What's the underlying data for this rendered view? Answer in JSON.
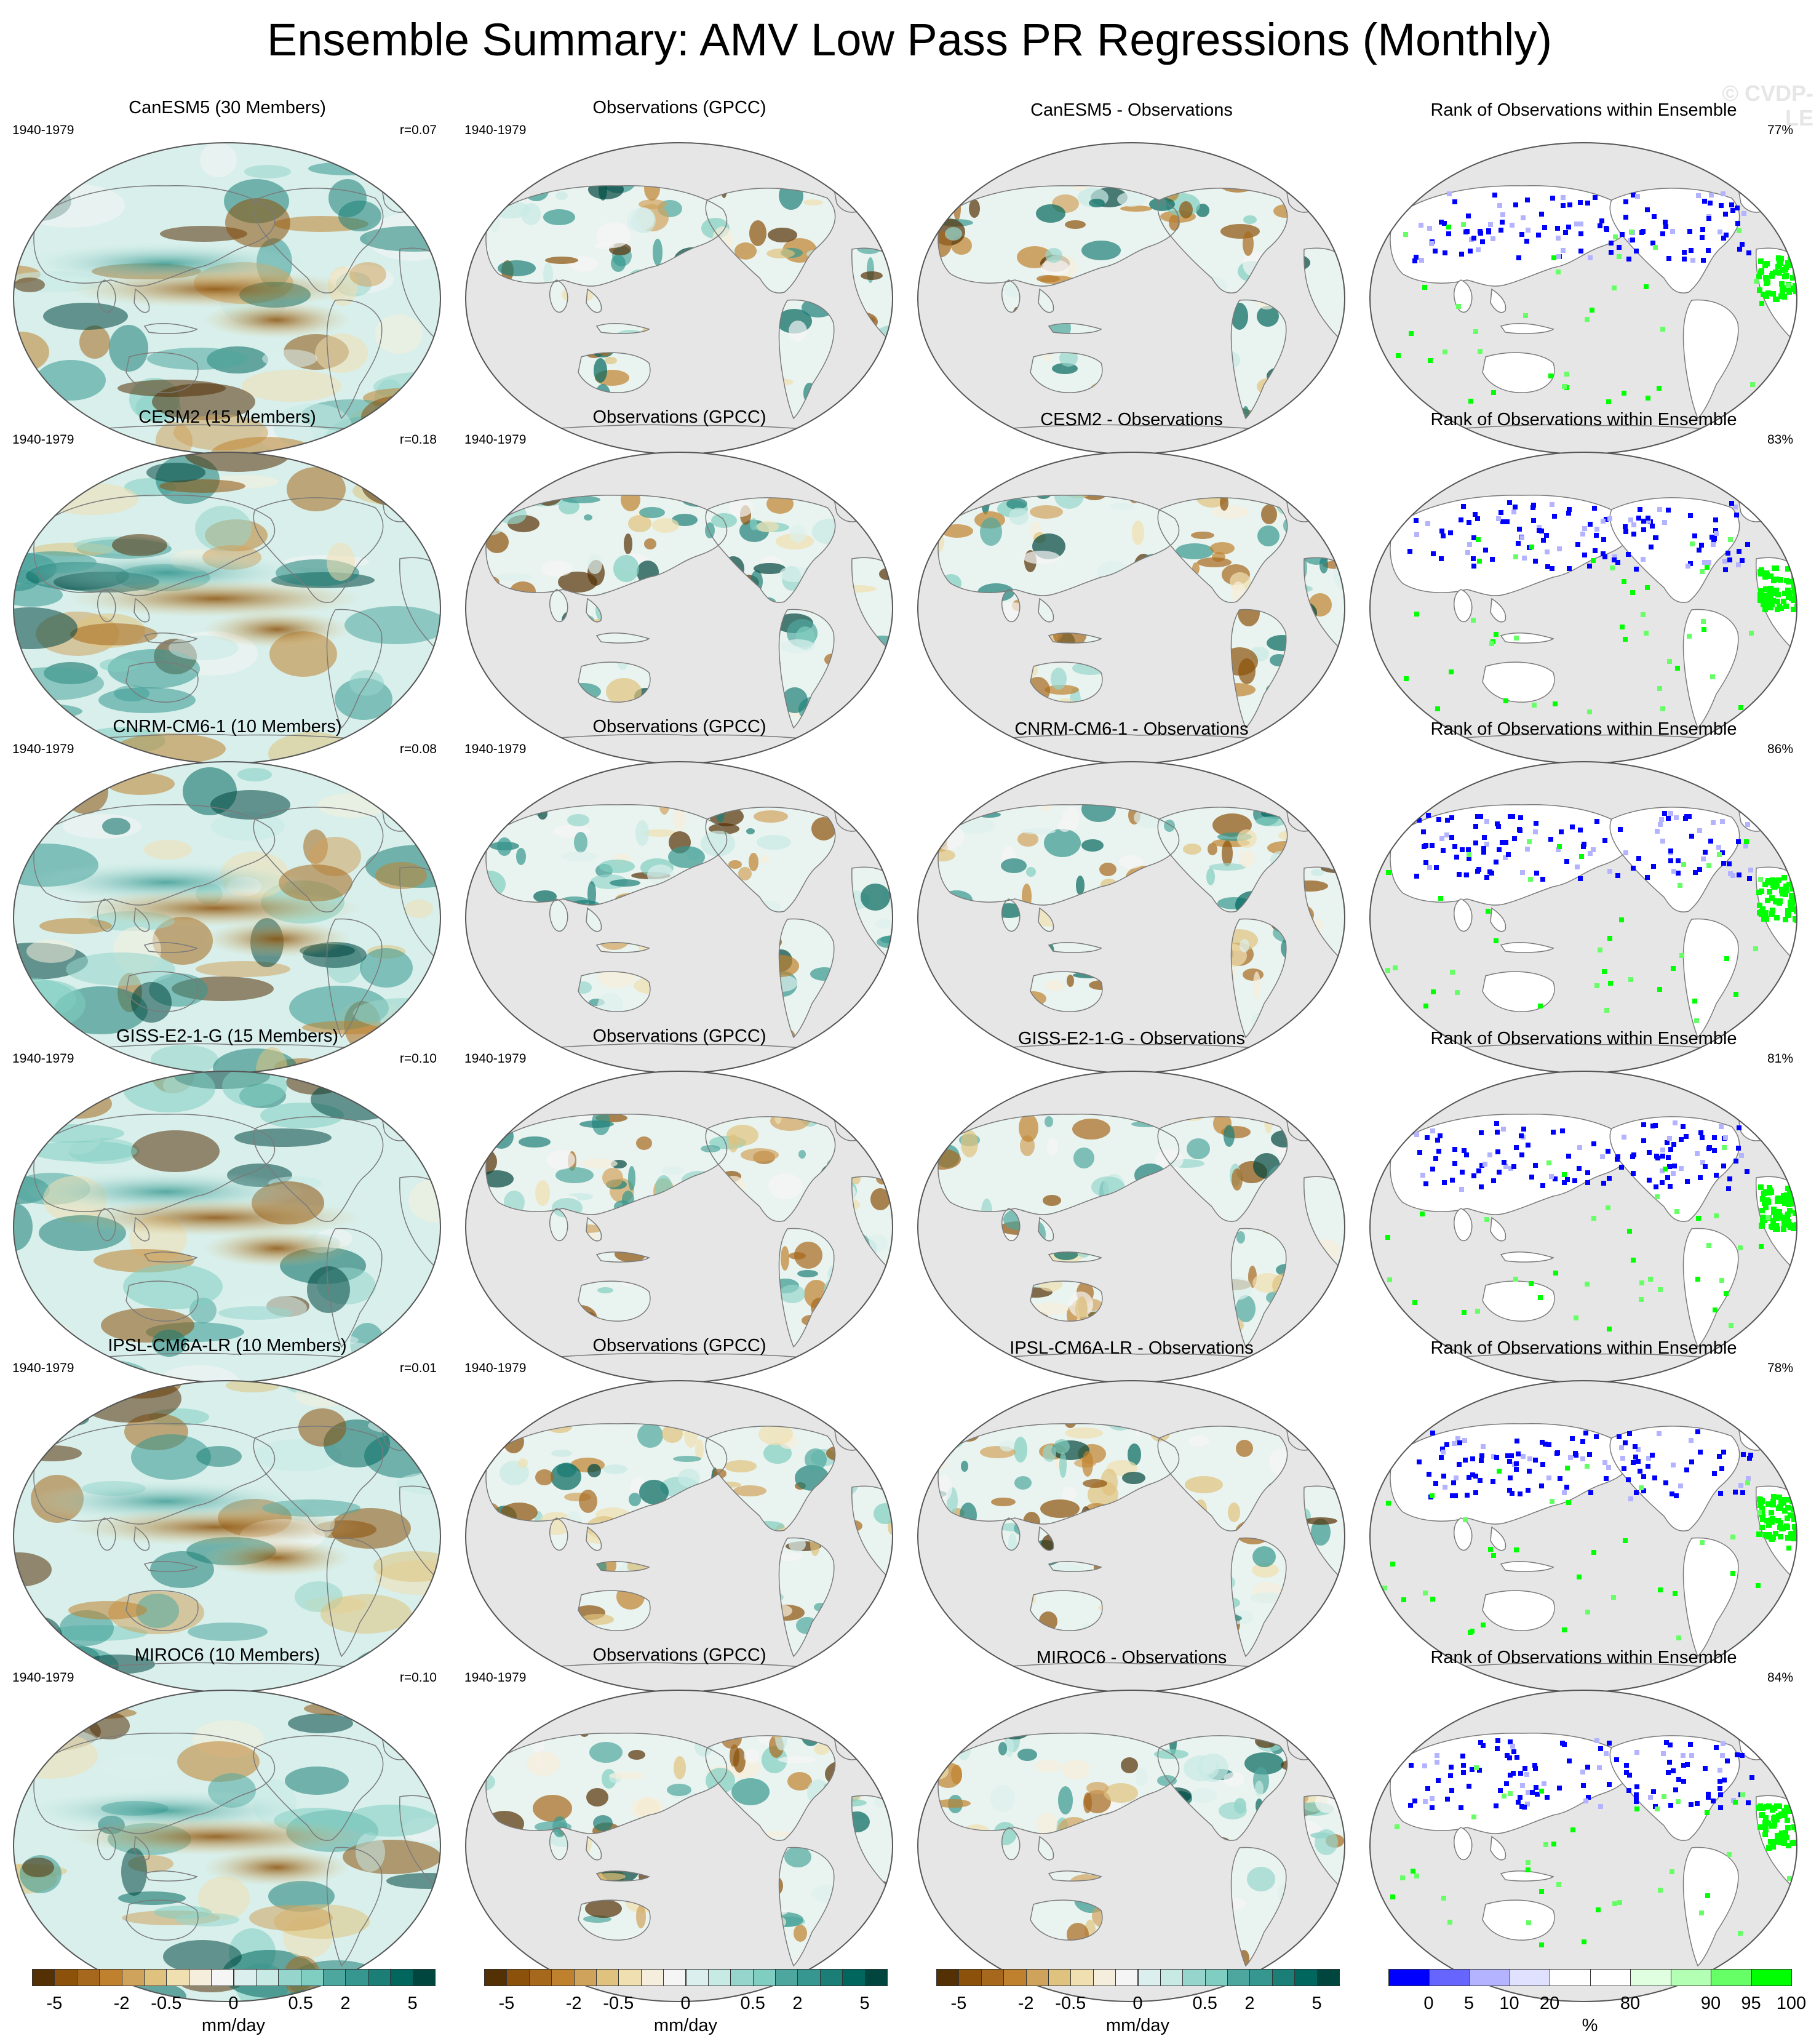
{
  "figure": {
    "title": "Ensemble Summary: AMV Low Pass PR Regressions (Monthly)",
    "watermark": "© CVDP-LE"
  },
  "colors": {
    "ocean": "#e6e6e6",
    "coast": "#7a7a7a",
    "pr_palette": [
      "#543005",
      "#8c510a",
      "#a6681c",
      "#bf812d",
      "#d0a35c",
      "#dfc27d",
      "#f0dfb0",
      "#f6eedc",
      "#f5f5f5",
      "#dbf0ee",
      "#c7eae5",
      "#95d5cc",
      "#80cdc1",
      "#4ea79e",
      "#35978f",
      "#1c7f77",
      "#01665e",
      "#00463f"
    ],
    "rank_palette": [
      "#0000ff",
      "#6666ff",
      "#b3b3ff",
      "#e0e0ff",
      "#ffffff",
      "#ffffff",
      "#e0ffe0",
      "#b3ffb3",
      "#66ff66",
      "#00ff00"
    ]
  },
  "rows": [
    {
      "ensemble_title": "CanESM5 (30 Members)",
      "period": "1940-1979",
      "pattern_corr": "r=0.07",
      "obs_title": "Observations (GPCC)",
      "diff_title": "CanESM5 - Observations",
      "rank_title": "Rank of Observations within Ensemble",
      "rank_pct": "77%"
    },
    {
      "ensemble_title": "CESM2 (15 Members)",
      "period": "1940-1979",
      "pattern_corr": "r=0.18",
      "obs_title": "Observations (GPCC)",
      "diff_title": "CESM2 - Observations",
      "rank_title": "Rank of Observations within Ensemble",
      "rank_pct": "83%"
    },
    {
      "ensemble_title": "CNRM-CM6-1 (10 Members)",
      "period": "1940-1979",
      "pattern_corr": "r=0.08",
      "obs_title": "Observations (GPCC)",
      "diff_title": "CNRM-CM6-1 - Observations",
      "rank_title": "Rank of Observations within Ensemble",
      "rank_pct": "86%"
    },
    {
      "ensemble_title": "GISS-E2-1-G (15 Members)",
      "period": "1940-1979",
      "pattern_corr": "r=0.10",
      "obs_title": "Observations (GPCC)",
      "diff_title": "GISS-E2-1-G - Observations",
      "rank_title": "Rank of Observations within Ensemble",
      "rank_pct": "81%"
    },
    {
      "ensemble_title": "IPSL-CM6A-LR (10 Members)",
      "period": "1940-1979",
      "pattern_corr": "r=0.01",
      "obs_title": "Observations (GPCC)",
      "diff_title": "IPSL-CM6A-LR - Observations",
      "rank_title": "Rank of Observations within Ensemble",
      "rank_pct": "78%"
    },
    {
      "ensemble_title": "MIROC6 (10 Members)",
      "period": "1940-1979",
      "pattern_corr": "r=0.10",
      "obs_title": "Observations (GPCC)",
      "diff_title": "MIROC6 - Observations",
      "rank_title": "Rank of Observations within Ensemble",
      "rank_pct": "84%"
    }
  ],
  "colorbars": {
    "pr": {
      "ticks": [
        "-5",
        "-2",
        "-0.5",
        "0",
        "0.5",
        "2",
        "5"
      ],
      "units": "mm/day"
    },
    "rank": {
      "ticks": [
        "0",
        "5",
        "10",
        "20",
        "80",
        "90",
        "95",
        "100"
      ],
      "units": "%"
    }
  }
}
